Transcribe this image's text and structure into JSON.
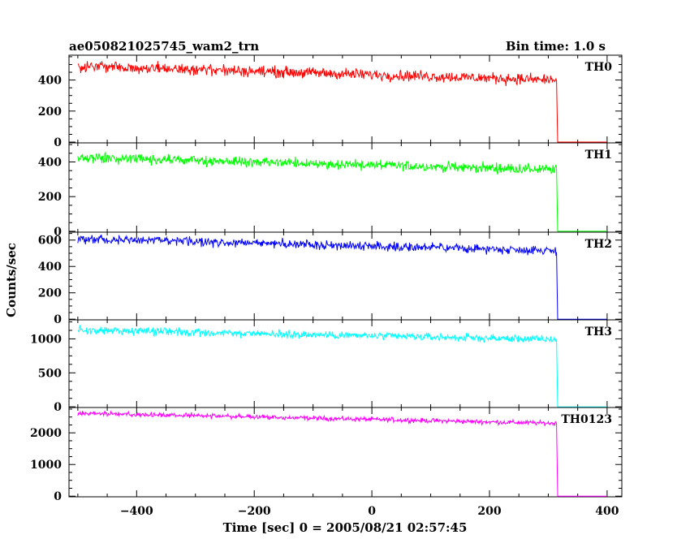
{
  "header": {
    "left_title": "ae050821025745_wam2_trn",
    "right_title": "Bin time: 1.0 s"
  },
  "axes": {
    "ylabel": "Counts/sec",
    "xlabel": "Time [sec] 0 = 2005/08/21 02:57:45"
  },
  "chart_data": [
    {
      "type": "line",
      "name": "TH0",
      "color": "#ff0000",
      "xlim": [
        -515,
        425
      ],
      "ylim": [
        -5,
        560
      ],
      "yticks": [
        0,
        200,
        400
      ],
      "ytick_labels": [
        "0",
        "200",
        "400"
      ],
      "level_start": 490,
      "level_end": 400,
      "noise": 22,
      "drop_time": 314,
      "x_start": -500,
      "x_end": 400,
      "grid": false
    },
    {
      "type": "line",
      "name": "TH1",
      "color": "#00ff00",
      "xlim": [
        -515,
        425
      ],
      "ylim": [
        -5,
        510
      ],
      "yticks": [
        0,
        200,
        400
      ],
      "ytick_labels": [
        "0",
        "200",
        "400"
      ],
      "level_start": 425,
      "level_end": 355,
      "noise": 18,
      "drop_time": 314,
      "x_start": -500,
      "x_end": 400,
      "grid": false
    },
    {
      "type": "line",
      "name": "TH2",
      "color": "#0000ff",
      "xlim": [
        -515,
        425
      ],
      "ylim": [
        -5,
        660
      ],
      "yticks": [
        0,
        200,
        400,
        600
      ],
      "ytick_labels": [
        "0",
        "200",
        "400",
        "600"
      ],
      "level_start": 610,
      "level_end": 520,
      "noise": 20,
      "drop_time": 314,
      "x_start": -500,
      "x_end": 400,
      "grid": false
    },
    {
      "type": "line",
      "name": "TH3",
      "color": "#00ffff",
      "xlim": [
        -515,
        425
      ],
      "ylim": [
        -10,
        1280
      ],
      "yticks": [
        0,
        500,
        1000
      ],
      "ytick_labels": [
        "0",
        "500",
        "1000"
      ],
      "level_start": 1130,
      "level_end": 990,
      "noise": 35,
      "drop_time": 314,
      "x_start": -500,
      "x_end": 400,
      "grid": false
    },
    {
      "type": "line",
      "name": "TH0123",
      "color": "#ff00ff",
      "xlim": [
        -515,
        425
      ],
      "ylim": [
        -20,
        2800
      ],
      "yticks": [
        0,
        1000,
        2000
      ],
      "ytick_labels": [
        "0",
        "1000",
        "2000"
      ],
      "level_start": 2620,
      "level_end": 2300,
      "noise": 45,
      "drop_time": 314,
      "x_start": -500,
      "x_end": 400,
      "grid": false
    }
  ],
  "x_ticks": [
    -400,
    -200,
    0,
    200,
    400
  ],
  "x_tick_labels": [
    "−400",
    "−200",
    "0",
    "200",
    "400"
  ]
}
